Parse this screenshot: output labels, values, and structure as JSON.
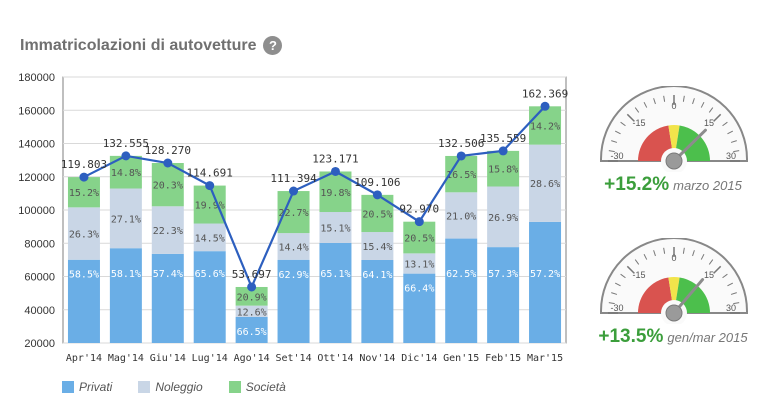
{
  "page": {
    "title": "Immatricolazioni di autovetture",
    "help_glyph": "?"
  },
  "chart_data": {
    "type": "bar",
    "stacked": true,
    "categories": [
      "Apr'14",
      "Mag'14",
      "Giu'14",
      "Lug'14",
      "Ago'14",
      "Set'14",
      "Ott'14",
      "Nov'14",
      "Dic'14",
      "Gen'15",
      "Feb'15",
      "Mar'15"
    ],
    "totals": [
      119803,
      132555,
      128270,
      114691,
      53697,
      111394,
      123171,
      109106,
      92970,
      132506,
      135559,
      162369
    ],
    "total_labels": [
      "119.803",
      "132.555",
      "128.270",
      "114.691",
      "53.697",
      "111.394",
      "123.171",
      "109.106",
      "92.970",
      "132.506",
      "135.559",
      "162.369"
    ],
    "series": [
      {
        "name": "Privati",
        "color": "#6aaee6",
        "percents": [
          58.5,
          58.1,
          57.4,
          65.6,
          66.5,
          62.9,
          65.1,
          64.1,
          66.4,
          62.5,
          57.3,
          57.2
        ],
        "labels": [
          "58.5%",
          "58.1%",
          "57.4%",
          "65.6%",
          "66.5%",
          "62.9%",
          "65.1%",
          "64.1%",
          "66.4%",
          "62.5%",
          "57.3%",
          "57.2%"
        ]
      },
      {
        "name": "Noleggio",
        "color": "#c9d6e6",
        "percents": [
          26.3,
          27.1,
          22.3,
          14.5,
          12.6,
          14.4,
          15.1,
          15.4,
          13.1,
          21.0,
          26.9,
          28.6
        ],
        "labels": [
          "26.3%",
          "27.1%",
          "22.3%",
          "14.5%",
          "12.6%",
          "14.4%",
          "15.1%",
          "15.4%",
          "13.1%",
          "21.0%",
          "26.9%",
          "28.6%"
        ]
      },
      {
        "name": "Società",
        "color": "#86d38a",
        "percents": [
          15.2,
          14.8,
          20.3,
          19.9,
          20.9,
          22.7,
          19.8,
          20.5,
          20.5,
          16.5,
          15.8,
          14.2
        ],
        "labels": [
          "15.2%",
          "14.8%",
          "20.3%",
          "19.9%",
          "20.9%",
          "22.7%",
          "19.8%",
          "20.5%",
          "20.5%",
          "16.5%",
          "15.8%",
          "14.2%"
        ]
      }
    ],
    "line_color": "#2d5fbf",
    "ylim": [
      20000,
      180000
    ],
    "yticks": [
      20000,
      40000,
      60000,
      80000,
      100000,
      120000,
      140000,
      160000,
      180000
    ],
    "ytick_labels": [
      "20000",
      "40000",
      "60000",
      "80000",
      "100000",
      "120000",
      "140000",
      "160000",
      "180000"
    ],
    "grid": true,
    "legend_position": "bottom-left"
  },
  "gauges": [
    {
      "value": 15.2,
      "pct_label": "+15.2%",
      "period": "marzo 2015",
      "scale_labels": [
        "-30",
        "-15",
        "0",
        "15",
        "30"
      ]
    },
    {
      "value": 13.5,
      "pct_label": "+13.5%",
      "period": "gen/mar 2015",
      "scale_labels": [
        "-30",
        "-15",
        "0",
        "15",
        "30"
      ]
    }
  ]
}
